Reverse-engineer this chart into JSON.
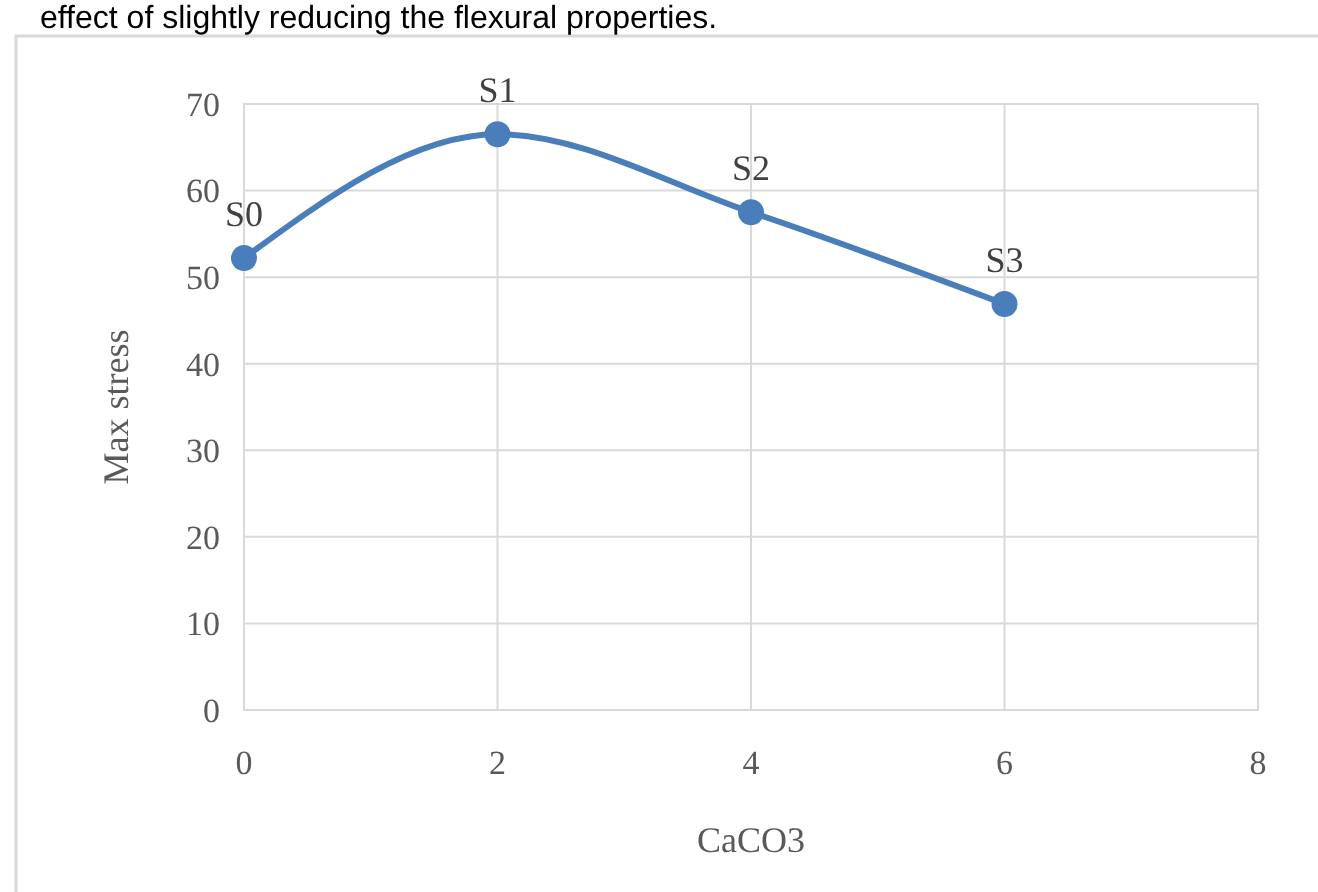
{
  "chart_data": {
    "type": "line",
    "xlabel": "CaCO3",
    "ylabel": "Max stress",
    "x": [
      0,
      2,
      4,
      6
    ],
    "series": [
      {
        "color": "#4a7ebb",
        "values": [
          52.2,
          66.5,
          57.5,
          46.9
        ]
      }
    ],
    "xlim": [
      0,
      8
    ],
    "xticks": [
      0,
      2,
      4,
      6,
      8
    ],
    "ylim": [
      0,
      70
    ],
    "yticks": [
      0,
      10,
      20,
      30,
      40,
      50,
      60,
      70
    ],
    "grid": true,
    "marker": "circle",
    "line_style": "solid",
    "annotations": [
      "effect of slightly reducing the flexural properties.",
      {
        "text": "S0",
        "x": 0,
        "y": 52.2
      },
      {
        "text": "S1",
        "x": 2,
        "y": 66.5
      },
      {
        "text": "S2",
        "x": 4,
        "y": 57.5
      },
      {
        "text": "S3",
        "x": 6,
        "y": 46.9
      }
    ]
  }
}
